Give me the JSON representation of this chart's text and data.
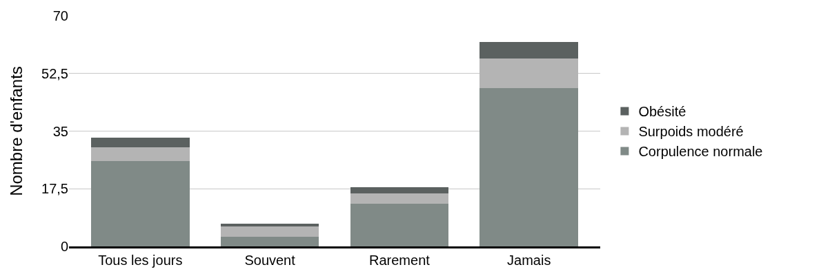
{
  "chart_data": {
    "type": "bar",
    "stacked": true,
    "ylabel": "Nombre d'enfants",
    "categories": [
      "Tous les jours",
      "Souvent",
      "Rarement",
      "Jamais"
    ],
    "series": [
      {
        "name": "Corpulence normale",
        "color": "#808a87",
        "values": [
          26,
          3,
          13,
          48
        ]
      },
      {
        "name": "Surpoids modéré",
        "color": "#b4b4b4",
        "values": [
          4,
          3,
          3,
          9
        ]
      },
      {
        "name": "Obésité",
        "color": "#5b6160",
        "values": [
          3,
          1,
          2,
          5
        ]
      }
    ],
    "ylim": [
      0,
      70
    ],
    "yticks": [
      0,
      {
        "value": 17.5,
        "label": "17,5"
      },
      35,
      {
        "value": 52.5,
        "label": "52,5"
      },
      70
    ],
    "grid": "y",
    "legend": "right"
  }
}
